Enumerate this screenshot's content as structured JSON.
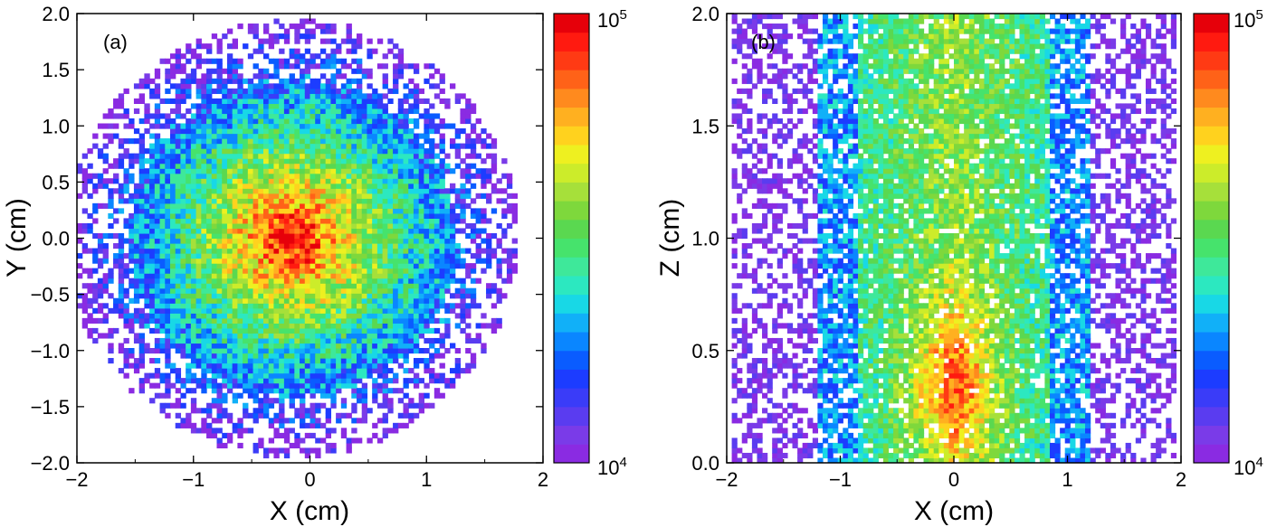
{
  "chart_data": [
    {
      "type": "heatmap",
      "panel_label": "(a)",
      "xlabel": "X (cm)",
      "ylabel": "Y (cm)",
      "xlim": [
        -2,
        2
      ],
      "ylim": [
        -2.0,
        2.0
      ],
      "xticks": [
        "−2",
        "−1",
        "0",
        "1",
        "2"
      ],
      "xtick_values": [
        -2,
        -1,
        0,
        1,
        2
      ],
      "yticks": [
        "−2.0",
        "−1.5",
        "−1.0",
        "−0.5",
        "0.0",
        "0.5",
        "1.0",
        "1.5",
        "2.0"
      ],
      "ytick_values": [
        -2.0,
        -1.5,
        -1.0,
        -0.5,
        0.0,
        0.5,
        1.0,
        1.5,
        2.0
      ],
      "distribution": {
        "shape": "radial",
        "center": [
          -0.15,
          0.0
        ],
        "radius_x": 1.95,
        "radius_y": 1.95,
        "peak_log10": 4.95,
        "falloff": 0.75
      },
      "colorbar": {
        "scale": "log",
        "min": 10000,
        "max": 100000,
        "top_label": {
          "base": "10",
          "exp": "5"
        },
        "bottom_label": {
          "base": "10",
          "exp": "4"
        },
        "colors": [
          "#8a2be2",
          "#7a3be8",
          "#5a3cf0",
          "#3a3cf8",
          "#1c3cff",
          "#0a5cff",
          "#0a86ff",
          "#11b0f8",
          "#18d8e6",
          "#2ce8c0",
          "#3ee89a",
          "#46e36c",
          "#5ad850",
          "#7ed83c",
          "#a6e03a",
          "#ccec2a",
          "#eef020",
          "#ffd21e",
          "#ffb020",
          "#ff8a1e",
          "#ff6218",
          "#ff3a14",
          "#ff1a10",
          "#e6000a"
        ]
      }
    },
    {
      "type": "heatmap",
      "panel_label": "(b)",
      "xlabel": "X (cm)",
      "ylabel": "Z (cm)",
      "xlim": [
        -2,
        2
      ],
      "ylim": [
        0.0,
        2.0
      ],
      "xticks": [
        "−2",
        "−1",
        "0",
        "1",
        "2"
      ],
      "xtick_values": [
        -2,
        -1,
        0,
        1,
        2
      ],
      "yticks": [
        "0.0",
        "0.5",
        "1.0",
        "1.5",
        "2.0"
      ],
      "ytick_values": [
        0.0,
        0.5,
        1.0,
        1.5,
        2.0
      ],
      "distribution": {
        "shape": "column",
        "center_x": 0.0,
        "core_halfwidth": 0.85,
        "outer_halfwidth": 1.95,
        "peak_log10": 4.8,
        "hotspot_z": 0.35
      },
      "colorbar": {
        "scale": "log",
        "min": 10000,
        "max": 100000,
        "top_label": {
          "base": "10",
          "exp": "5"
        },
        "bottom_label": {
          "base": "10",
          "exp": "4"
        },
        "colors": [
          "#8a2be2",
          "#7a3be8",
          "#5a3cf0",
          "#3a3cf8",
          "#1c3cff",
          "#0a5cff",
          "#0a86ff",
          "#11b0f8",
          "#18d8e6",
          "#2ce8c0",
          "#3ee89a",
          "#46e36c",
          "#5ad850",
          "#7ed83c",
          "#a6e03a",
          "#ccec2a",
          "#eef020",
          "#ffd21e",
          "#ffb020",
          "#ff8a1e",
          "#ff6218",
          "#ff3a14",
          "#ff1a10",
          "#e6000a"
        ]
      }
    }
  ]
}
